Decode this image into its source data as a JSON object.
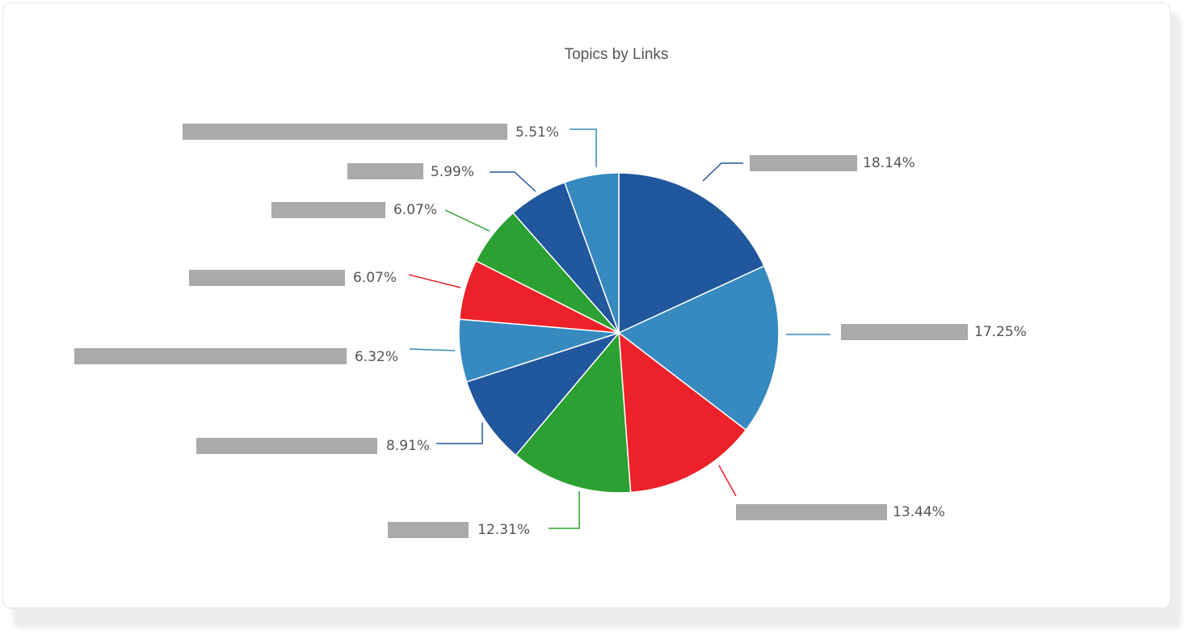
{
  "chart_data": {
    "type": "pie",
    "title": "Topics by Links",
    "start_angle_deg": 0,
    "direction": "clockwise",
    "slices": [
      {
        "label": "",
        "value": 18.14,
        "display": "18.14%",
        "color": "#21579c"
      },
      {
        "label": "",
        "value": 17.25,
        "display": "17.25%",
        "color": "#368ac0"
      },
      {
        "label": "",
        "value": 13.44,
        "display": "13.44%",
        "color": "#ed2129"
      },
      {
        "label": "",
        "value": 12.31,
        "display": "12.31%",
        "color": "#2ca032"
      },
      {
        "label": "",
        "value": 8.91,
        "display": "8.91%",
        "color": "#21579c"
      },
      {
        "label": "",
        "value": 6.32,
        "display": "6.32%",
        "color": "#368ac0"
      },
      {
        "label": "",
        "value": 6.07,
        "display": "6.07%",
        "color": "#ed2129"
      },
      {
        "label": "",
        "value": 6.07,
        "display": "6.07%",
        "color": "#2ca032"
      },
      {
        "label": "",
        "value": 5.99,
        "display": "5.99%",
        "color": "#21579c"
      },
      {
        "label": "",
        "value": 5.51,
        "display": "5.51%",
        "color": "#368ac0"
      }
    ],
    "label_placeholder_color": "#aaaaaa"
  }
}
